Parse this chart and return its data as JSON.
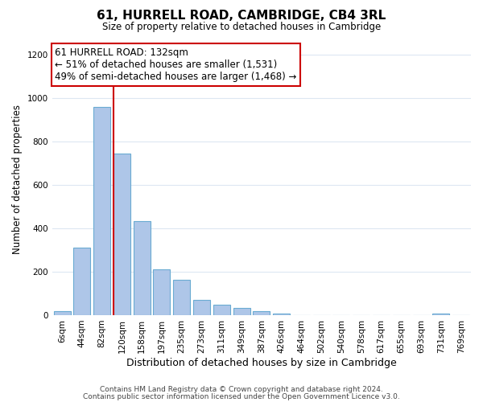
{
  "title": "61, HURRELL ROAD, CAMBRIDGE, CB4 3RL",
  "subtitle": "Size of property relative to detached houses in Cambridge",
  "xlabel": "Distribution of detached houses by size in Cambridge",
  "ylabel": "Number of detached properties",
  "bin_labels": [
    "6sqm",
    "44sqm",
    "82sqm",
    "120sqm",
    "158sqm",
    "197sqm",
    "235sqm",
    "273sqm",
    "311sqm",
    "349sqm",
    "387sqm",
    "426sqm",
    "464sqm",
    "502sqm",
    "540sqm",
    "578sqm",
    "617sqm",
    "655sqm",
    "693sqm",
    "731sqm",
    "769sqm"
  ],
  "bar_heights": [
    20,
    310,
    960,
    745,
    435,
    212,
    163,
    72,
    47,
    32,
    18,
    8,
    0,
    0,
    0,
    0,
    0,
    0,
    0,
    8,
    0
  ],
  "bar_color": "#aec6e8",
  "bar_edgecolor": "#6aabd2",
  "highlight_line_index": 3,
  "highlight_color": "#cc0000",
  "annotation_line1": "61 HURRELL ROAD: 132sqm",
  "annotation_line2": "← 51% of detached houses are smaller (1,531)",
  "annotation_line3": "49% of semi-detached houses are larger (1,468) →",
  "annotation_box_edgecolor": "#cc0000",
  "ylim": [
    0,
    1250
  ],
  "yticks": [
    0,
    200,
    400,
    600,
    800,
    1000,
    1200
  ],
  "footer_line1": "Contains HM Land Registry data © Crown copyright and database right 2024.",
  "footer_line2": "Contains public sector information licensed under the Open Government Licence v3.0.",
  "bg_color": "#ffffff",
  "grid_color": "#dde7f2",
  "title_fontsize": 11,
  "subtitle_fontsize": 8.5,
  "xlabel_fontsize": 9,
  "ylabel_fontsize": 8.5,
  "footer_fontsize": 6.5,
  "tick_fontsize": 7.5,
  "annotation_fontsize": 8.5
}
